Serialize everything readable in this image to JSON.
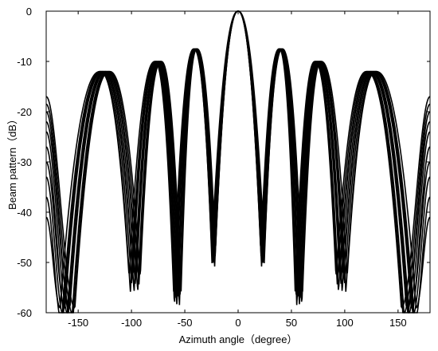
{
  "chart_data": {
    "type": "line",
    "title": "",
    "xlabel": "Azimuth angle（degree）",
    "ylabel": "Beam pattern（dB）",
    "xlim": [
      -180,
      180
    ],
    "ylim": [
      -60,
      0
    ],
    "xticks": [
      -150,
      -100,
      -50,
      0,
      50,
      100,
      150
    ],
    "yticks": [
      0,
      -10,
      -20,
      -30,
      -40,
      -50,
      -60
    ],
    "grid": false,
    "legend": "none",
    "line_color": "#000000",
    "main_lobe": {
      "x": 0,
      "y": 0
    },
    "sidelobe_peaks": [
      {
        "x": -125,
        "y": -12
      },
      {
        "x": -75,
        "y": -10
      },
      {
        "x": -40,
        "y": -7.5
      },
      {
        "x": 40,
        "y": -7.5
      },
      {
        "x": 75,
        "y": -10
      },
      {
        "x": 125,
        "y": -12
      }
    ],
    "nulls": [
      {
        "x": -160,
        "y": -59
      },
      {
        "x": -97,
        "y": -53
      },
      {
        "x": -57,
        "y": -56
      },
      {
        "x": -23,
        "y": -48
      },
      {
        "x": 23,
        "y": -48
      },
      {
        "x": 57,
        "y": -56
      },
      {
        "x": 97,
        "y": -53
      },
      {
        "x": 160,
        "y": -59
      }
    ],
    "edge_values_at_x_180": [
      -17,
      -18.5,
      -20,
      -22,
      -24,
      -27,
      -30,
      -33,
      -37,
      -41
    ],
    "series_count": 10
  }
}
